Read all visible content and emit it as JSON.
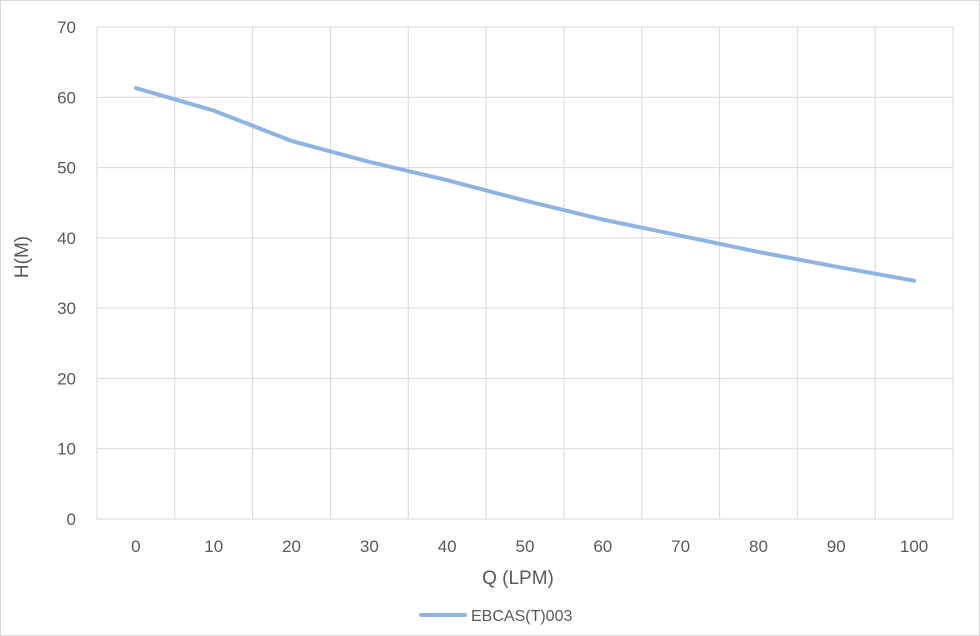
{
  "chart_data": {
    "type": "line",
    "title": "",
    "xlabel": "Q (LPM)",
    "ylabel": "H(M)",
    "categories": [
      "0",
      "10",
      "20",
      "30",
      "40",
      "50",
      "60",
      "70",
      "80",
      "90",
      "100"
    ],
    "y_ticks": [
      "0",
      "10",
      "20",
      "30",
      "40",
      "50",
      "60",
      "70"
    ],
    "ylim": [
      0,
      70
    ],
    "grid": true,
    "legend_position": "bottom",
    "series": [
      {
        "name": "EBCAS(T)003",
        "color": "#8eb4e3",
        "values": [
          61.3,
          58.1,
          53.8,
          50.8,
          48.2,
          45.3,
          42.6,
          40.3,
          38.0,
          35.9,
          33.9
        ]
      }
    ]
  }
}
